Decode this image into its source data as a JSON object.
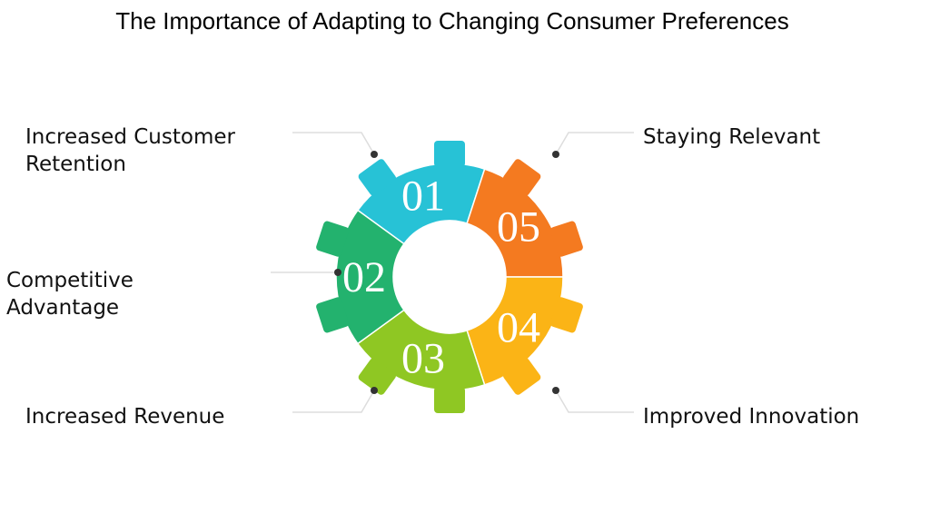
{
  "title": "The Importance of Adapting to Changing Consumer Preferences",
  "gear": {
    "segments": [
      {
        "number": "01",
        "color": "#27c2d6"
      },
      {
        "number": "05",
        "color": "#f47a20"
      },
      {
        "number": "04",
        "color": "#fbb416"
      },
      {
        "number": "03",
        "color": "#8fc723"
      },
      {
        "number": "02",
        "color": "#23b26e"
      }
    ]
  },
  "items": [
    {
      "lines": [
        "Increased Customer",
        "Retention"
      ]
    },
    {
      "lines": [
        "Competitive",
        "Advantage"
      ]
    },
    {
      "lines": [
        "Increased Revenue"
      ]
    },
    {
      "lines": [
        "Staying Relevant"
      ]
    },
    {
      "lines": [
        "Improved Innovation"
      ]
    }
  ]
}
